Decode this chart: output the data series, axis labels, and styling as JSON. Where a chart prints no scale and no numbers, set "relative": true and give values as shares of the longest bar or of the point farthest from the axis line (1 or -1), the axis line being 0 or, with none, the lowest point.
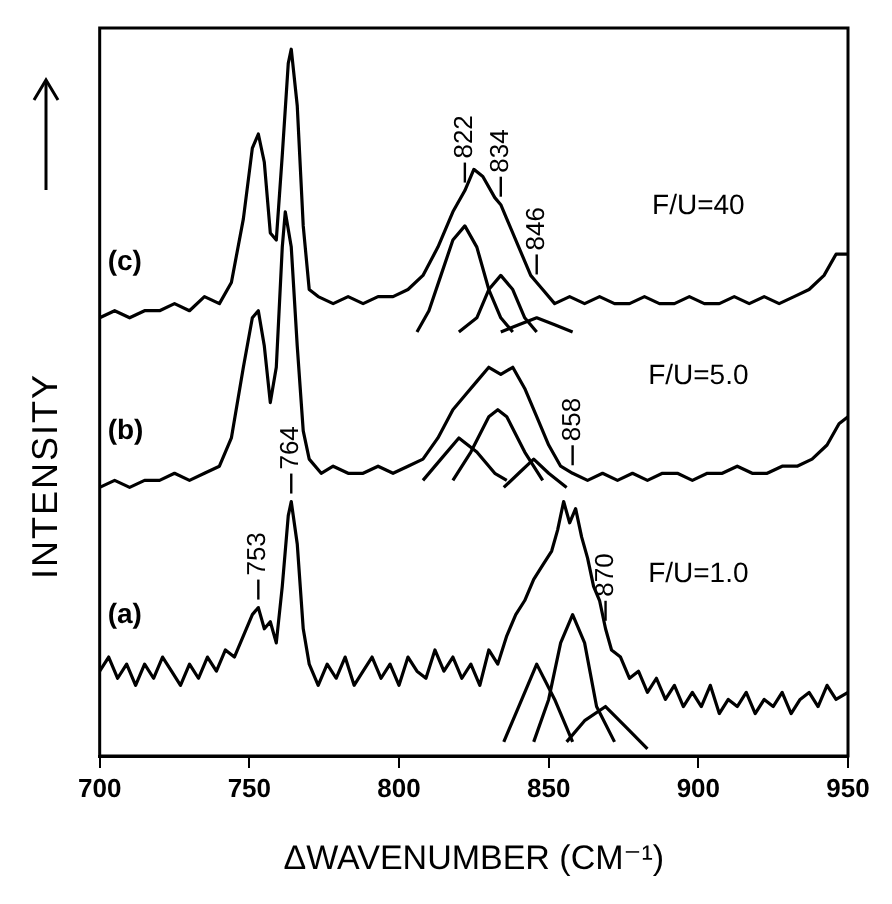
{
  "chart_data": {
    "type": "line",
    "relative": true,
    "xlabel": "ΔWAVENUMBER (CM⁻¹)",
    "ylabel": "INTENSITY",
    "xlim": [
      700,
      950
    ],
    "xticks": [
      700,
      750,
      800,
      850,
      900,
      950
    ],
    "marker": "none",
    "line_style": "solid",
    "series": [
      {
        "name": "(c)",
        "color": "#000000",
        "x": [
          700,
          705,
          710,
          715,
          720,
          725,
          730,
          735,
          740,
          744,
          748,
          751,
          753,
          755,
          757,
          759,
          761,
          763,
          764,
          766,
          768,
          770,
          773,
          778,
          783,
          788,
          793,
          798,
          803,
          808,
          813,
          818,
          822,
          825,
          828,
          832,
          834,
          836,
          840,
          844,
          846,
          848,
          852,
          857,
          862,
          867,
          872,
          877,
          882,
          887,
          892,
          897,
          902,
          907,
          912,
          917,
          922,
          927,
          932,
          937,
          942,
          946,
          950
        ],
        "values": [
          0.62,
          0.63,
          0.62,
          0.63,
          0.63,
          0.64,
          0.63,
          0.65,
          0.64,
          0.67,
          0.76,
          0.86,
          0.88,
          0.84,
          0.74,
          0.73,
          0.85,
          0.98,
          1.0,
          0.92,
          0.75,
          0.66,
          0.65,
          0.64,
          0.65,
          0.64,
          0.65,
          0.65,
          0.66,
          0.68,
          0.72,
          0.77,
          0.8,
          0.83,
          0.82,
          0.79,
          0.78,
          0.76,
          0.72,
          0.68,
          0.67,
          0.66,
          0.64,
          0.65,
          0.64,
          0.65,
          0.64,
          0.64,
          0.65,
          0.64,
          0.64,
          0.65,
          0.64,
          0.64,
          0.65,
          0.64,
          0.65,
          0.64,
          0.65,
          0.66,
          0.68,
          0.71,
          0.71
        ]
      },
      {
        "color": "#000000",
        "x": [
          806,
          810,
          814,
          818,
          822,
          826,
          830,
          834,
          838
        ],
        "values": [
          0.6,
          0.63,
          0.68,
          0.73,
          0.75,
          0.72,
          0.66,
          0.62,
          0.6
        ]
      },
      {
        "color": "#000000",
        "x": [
          820,
          826,
          830,
          834,
          838,
          842,
          846
        ],
        "values": [
          0.6,
          0.62,
          0.66,
          0.68,
          0.66,
          0.62,
          0.6
        ]
      },
      {
        "color": "#000000",
        "x": [
          834,
          840,
          846,
          852,
          858
        ],
        "values": [
          0.6,
          0.61,
          0.62,
          0.61,
          0.6
        ]
      },
      {
        "name": "(b)",
        "color": "#000000",
        "x": [
          700,
          705,
          710,
          715,
          720,
          725,
          730,
          735,
          740,
          744,
          748,
          751,
          753,
          755,
          757,
          759,
          761,
          762,
          764,
          766,
          768,
          770,
          774,
          778,
          783,
          788,
          793,
          798,
          803,
          808,
          813,
          818,
          822,
          826,
          830,
          834,
          838,
          842,
          846,
          850,
          854,
          858,
          863,
          868,
          873,
          878,
          883,
          888,
          893,
          898,
          903,
          908,
          913,
          918,
          923,
          928,
          933,
          938,
          943,
          947,
          950
        ],
        "values": [
          0.38,
          0.39,
          0.38,
          0.39,
          0.39,
          0.4,
          0.39,
          0.4,
          0.41,
          0.45,
          0.55,
          0.62,
          0.63,
          0.58,
          0.5,
          0.55,
          0.72,
          0.77,
          0.72,
          0.58,
          0.46,
          0.42,
          0.4,
          0.41,
          0.4,
          0.4,
          0.41,
          0.4,
          0.41,
          0.42,
          0.45,
          0.49,
          0.51,
          0.53,
          0.55,
          0.54,
          0.55,
          0.52,
          0.48,
          0.44,
          0.41,
          0.4,
          0.39,
          0.4,
          0.39,
          0.4,
          0.39,
          0.4,
          0.4,
          0.39,
          0.4,
          0.4,
          0.41,
          0.4,
          0.4,
          0.41,
          0.41,
          0.42,
          0.44,
          0.47,
          0.48
        ]
      },
      {
        "color": "#000000",
        "x": [
          808,
          814,
          820,
          826,
          832,
          836
        ],
        "values": [
          0.39,
          0.42,
          0.45,
          0.43,
          0.4,
          0.39
        ]
      },
      {
        "color": "#000000",
        "x": [
          818,
          824,
          830,
          833,
          836,
          842,
          848
        ],
        "values": [
          0.39,
          0.43,
          0.48,
          0.49,
          0.48,
          0.43,
          0.39
        ]
      },
      {
        "color": "#000000",
        "x": [
          835,
          840,
          845,
          850,
          856
        ],
        "values": [
          0.38,
          0.4,
          0.42,
          0.4,
          0.38
        ]
      },
      {
        "name": "(a)",
        "color": "#000000",
        "x": [
          700,
          703,
          706,
          709,
          712,
          715,
          718,
          721,
          724,
          727,
          730,
          733,
          736,
          739,
          742,
          745,
          748,
          751,
          753,
          755,
          757,
          759,
          761,
          763,
          764,
          766,
          768,
          770,
          773,
          776,
          779,
          782,
          785,
          788,
          791,
          794,
          797,
          800,
          803,
          806,
          809,
          812,
          815,
          818,
          821,
          824,
          827,
          830,
          833,
          836,
          839,
          842,
          845,
          848,
          851,
          853,
          855,
          857,
          859,
          861,
          863,
          865,
          867,
          869,
          871,
          874,
          877,
          880,
          883,
          886,
          889,
          892,
          895,
          898,
          901,
          904,
          907,
          910,
          913,
          916,
          919,
          922,
          925,
          928,
          931,
          934,
          937,
          940,
          943,
          946,
          950
        ],
        "values": [
          0.12,
          0.14,
          0.11,
          0.13,
          0.1,
          0.13,
          0.11,
          0.14,
          0.12,
          0.1,
          0.13,
          0.11,
          0.14,
          0.12,
          0.15,
          0.14,
          0.17,
          0.2,
          0.21,
          0.18,
          0.19,
          0.16,
          0.24,
          0.34,
          0.36,
          0.3,
          0.18,
          0.13,
          0.1,
          0.13,
          0.11,
          0.14,
          0.1,
          0.12,
          0.14,
          0.11,
          0.13,
          0.1,
          0.14,
          0.12,
          0.11,
          0.15,
          0.12,
          0.14,
          0.11,
          0.13,
          0.1,
          0.15,
          0.13,
          0.17,
          0.2,
          0.22,
          0.25,
          0.27,
          0.29,
          0.32,
          0.36,
          0.33,
          0.35,
          0.31,
          0.28,
          0.24,
          0.22,
          0.18,
          0.15,
          0.14,
          0.11,
          0.12,
          0.09,
          0.11,
          0.08,
          0.1,
          0.07,
          0.09,
          0.07,
          0.1,
          0.06,
          0.08,
          0.07,
          0.09,
          0.06,
          0.08,
          0.07,
          0.09,
          0.06,
          0.08,
          0.09,
          0.07,
          0.1,
          0.08,
          0.09
        ]
      },
      {
        "color": "#000000",
        "x": [
          835,
          840,
          846,
          852,
          858
        ],
        "values": [
          0.02,
          0.07,
          0.13,
          0.08,
          0.02
        ]
      },
      {
        "color": "#000000",
        "x": [
          845,
          850,
          854,
          858,
          862,
          866,
          872
        ],
        "values": [
          0.02,
          0.08,
          0.16,
          0.2,
          0.16,
          0.07,
          0.02
        ]
      },
      {
        "color": "#000000",
        "x": [
          856,
          862,
          869,
          876,
          883
        ],
        "values": [
          0.02,
          0.05,
          0.07,
          0.04,
          0.01
        ]
      }
    ],
    "annotations": [
      {
        "text": "753",
        "x": 753,
        "y": 0.21
      },
      {
        "text": "764",
        "x": 764,
        "y": 0.36
      },
      {
        "text": "822",
        "x": 822,
        "y": 0.8
      },
      {
        "text": "834",
        "x": 834,
        "y": 0.78
      },
      {
        "text": "846",
        "x": 846,
        "y": 0.67
      },
      {
        "text": "858",
        "x": 858,
        "y": 0.4
      },
      {
        "text": "870",
        "x": 869,
        "y": 0.18
      },
      "F/U=40",
      "F/U=5.0",
      "F/U=1.0"
    ]
  }
}
